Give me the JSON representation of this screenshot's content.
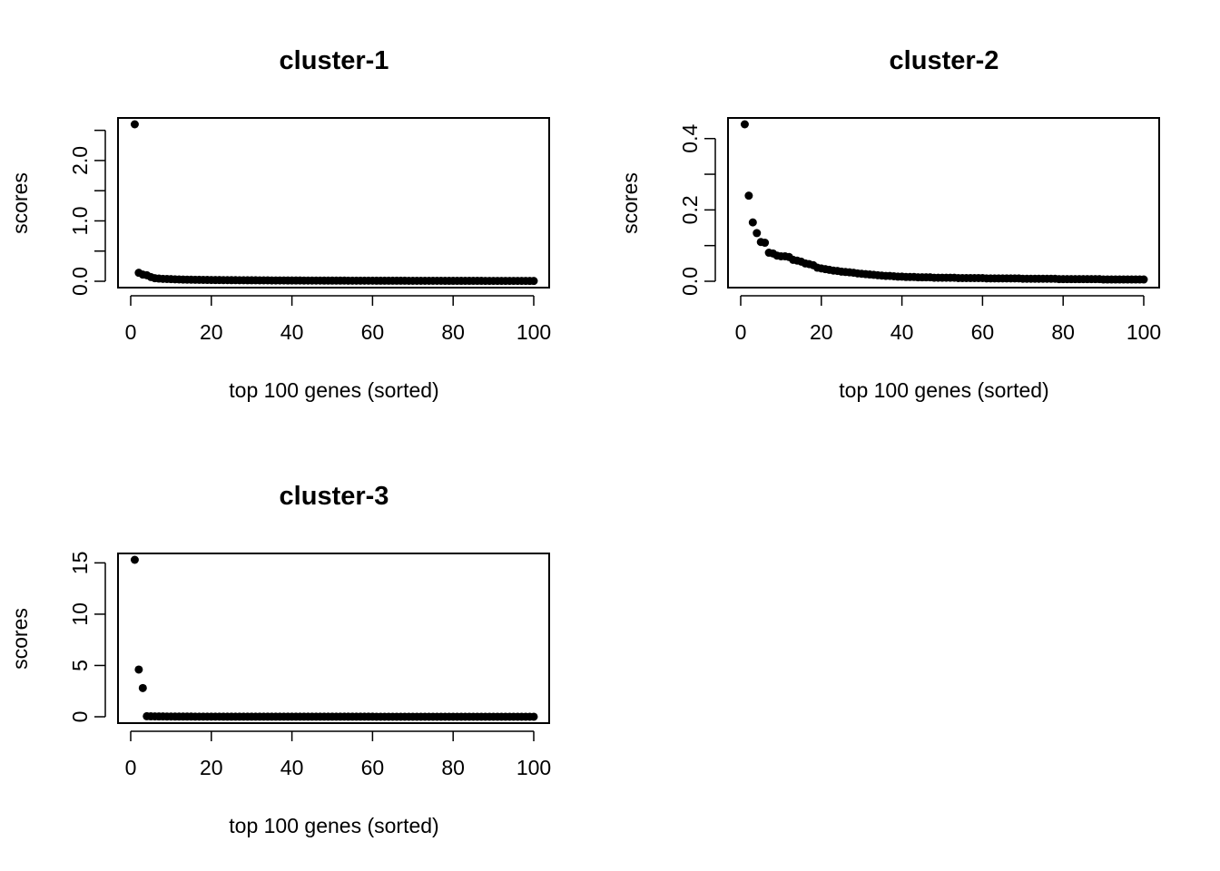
{
  "chart_data": [
    {
      "type": "scatter",
      "title": "cluster-1",
      "xlabel": "top 100 genes (sorted)",
      "ylabel": "scores",
      "xlim": [
        0,
        100
      ],
      "ylim": [
        0,
        2.6
      ],
      "xticks": [
        0,
        20,
        40,
        60,
        80,
        100
      ],
      "yticks": [
        0.0,
        0.5,
        1.0,
        1.5,
        2.0,
        2.5
      ],
      "yticklabels": [
        "0.0",
        "",
        "1.0",
        "",
        "2.0",
        ""
      ],
      "grid": false,
      "y": [
        2.6,
        0.14,
        0.11,
        0.1,
        0.07,
        0.05,
        0.045,
        0.04,
        0.038,
        0.035,
        0.032,
        0.03,
        0.028,
        0.027,
        0.026,
        0.025,
        0.024,
        0.023,
        0.022,
        0.021,
        0.02,
        0.02,
        0.019,
        0.019,
        0.018,
        0.018,
        0.017,
        0.017,
        0.016,
        0.016,
        0.016,
        0.015,
        0.015,
        0.015,
        0.014,
        0.014,
        0.014,
        0.014,
        0.013,
        0.013,
        0.013,
        0.013,
        0.012,
        0.012,
        0.012,
        0.012,
        0.012,
        0.011,
        0.011,
        0.011,
        0.011,
        0.011,
        0.011,
        0.01,
        0.01,
        0.01,
        0.01,
        0.01,
        0.01,
        0.01,
        0.009,
        0.009,
        0.009,
        0.009,
        0.009,
        0.009,
        0.009,
        0.009,
        0.008,
        0.008,
        0.008,
        0.008,
        0.008,
        0.008,
        0.008,
        0.008,
        0.008,
        0.007,
        0.007,
        0.007,
        0.007,
        0.007,
        0.007,
        0.007,
        0.007,
        0.007,
        0.007,
        0.006,
        0.006,
        0.006,
        0.006,
        0.006,
        0.006,
        0.006,
        0.006,
        0.006,
        0.006,
        0.006,
        0.005,
        0.005
      ]
    },
    {
      "type": "scatter",
      "title": "cluster-2",
      "xlabel": "top 100 genes (sorted)",
      "ylabel": "scores",
      "xlim": [
        0,
        100
      ],
      "ylim": [
        0,
        0.44
      ],
      "xticks": [
        0,
        20,
        40,
        60,
        80,
        100
      ],
      "yticks": [
        0.0,
        0.1,
        0.2,
        0.3,
        0.4
      ],
      "yticklabels": [
        "0.0",
        "",
        "0.2",
        "",
        "0.4"
      ],
      "grid": false,
      "y": [
        0.44,
        0.24,
        0.165,
        0.135,
        0.11,
        0.108,
        0.08,
        0.078,
        0.072,
        0.07,
        0.07,
        0.068,
        0.06,
        0.058,
        0.055,
        0.05,
        0.048,
        0.045,
        0.038,
        0.036,
        0.034,
        0.032,
        0.03,
        0.029,
        0.027,
        0.026,
        0.025,
        0.024,
        0.022,
        0.021,
        0.02,
        0.019,
        0.018,
        0.017,
        0.016,
        0.015,
        0.015,
        0.014,
        0.013,
        0.013,
        0.012,
        0.012,
        0.012,
        0.011,
        0.011,
        0.011,
        0.011,
        0.01,
        0.01,
        0.01,
        0.01,
        0.01,
        0.01,
        0.009,
        0.009,
        0.009,
        0.009,
        0.009,
        0.009,
        0.009,
        0.008,
        0.008,
        0.008,
        0.008,
        0.008,
        0.008,
        0.008,
        0.008,
        0.008,
        0.007,
        0.007,
        0.007,
        0.007,
        0.007,
        0.007,
        0.007,
        0.007,
        0.007,
        0.006,
        0.006,
        0.006,
        0.006,
        0.006,
        0.006,
        0.006,
        0.006,
        0.006,
        0.006,
        0.006,
        0.005,
        0.005,
        0.005,
        0.005,
        0.005,
        0.005,
        0.005,
        0.005,
        0.005,
        0.005,
        0.005
      ]
    },
    {
      "type": "scatter",
      "title": "cluster-3",
      "xlabel": "top 100 genes (sorted)",
      "ylabel": "scores",
      "xlim": [
        0,
        100
      ],
      "ylim": [
        0,
        15.3
      ],
      "xticks": [
        0,
        20,
        40,
        60,
        80,
        100
      ],
      "yticks": [
        0,
        5,
        10,
        15
      ],
      "yticklabels": [
        "0",
        "5",
        "10",
        "15"
      ],
      "grid": false,
      "y": [
        15.3,
        4.6,
        2.8,
        0.05,
        0.04,
        0.035,
        0.03,
        0.03,
        0.025,
        0.025,
        0.02,
        0.02,
        0.02,
        0.02,
        0.02,
        0.015,
        0.015,
        0.015,
        0.015,
        0.015,
        0.015,
        0.015,
        0.01,
        0.01,
        0.01,
        0.01,
        0.01,
        0.01,
        0.01,
        0.01,
        0.01,
        0.01,
        0.01,
        0.01,
        0.01,
        0.01,
        0.01,
        0.01,
        0.01,
        0.01,
        0.01,
        0.01,
        0.01,
        0.01,
        0.01,
        0.01,
        0.01,
        0.01,
        0.01,
        0.01,
        0.01,
        0.01,
        0.01,
        0.01,
        0.01,
        0.01,
        0.01,
        0.01,
        0.01,
        0.01,
        0.005,
        0.005,
        0.005,
        0.005,
        0.005,
        0.005,
        0.005,
        0.005,
        0.005,
        0.005,
        0.005,
        0.005,
        0.005,
        0.005,
        0.005,
        0.005,
        0.005,
        0.005,
        0.005,
        0.005,
        0.005,
        0.005,
        0.005,
        0.005,
        0.005,
        0.005,
        0.005,
        0.005,
        0.005,
        0.005,
        0.005,
        0.005,
        0.005,
        0.005,
        0.005,
        0.005,
        0.005,
        0.005,
        0.005,
        0.005
      ]
    }
  ]
}
